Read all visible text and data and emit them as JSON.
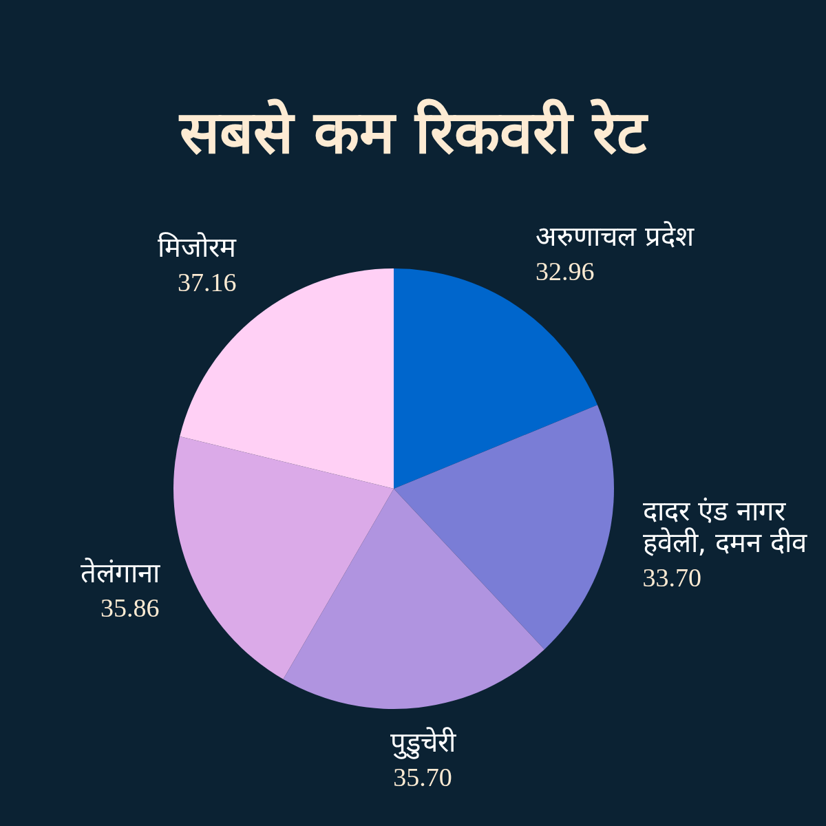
{
  "chart_data": {
    "type": "pie",
    "title": "सबसे कम रिकवरी रेट",
    "categories": [
      "अरुणाचल प्रदेश",
      "दादर एंड नागर हवेली, दमन दीव",
      "पुडुचेरी",
      "तेलंगाना",
      "मिजोरम"
    ],
    "values": [
      32.96,
      33.7,
      35.7,
      35.86,
      37.16
    ],
    "value_labels": [
      "32.96",
      "33.70",
      "35.70",
      "35.86",
      "37.16"
    ],
    "colors": [
      "#0066cc",
      "#7a7dd6",
      "#b094e0",
      "#dbaae8",
      "#ffd0f5"
    ]
  }
}
